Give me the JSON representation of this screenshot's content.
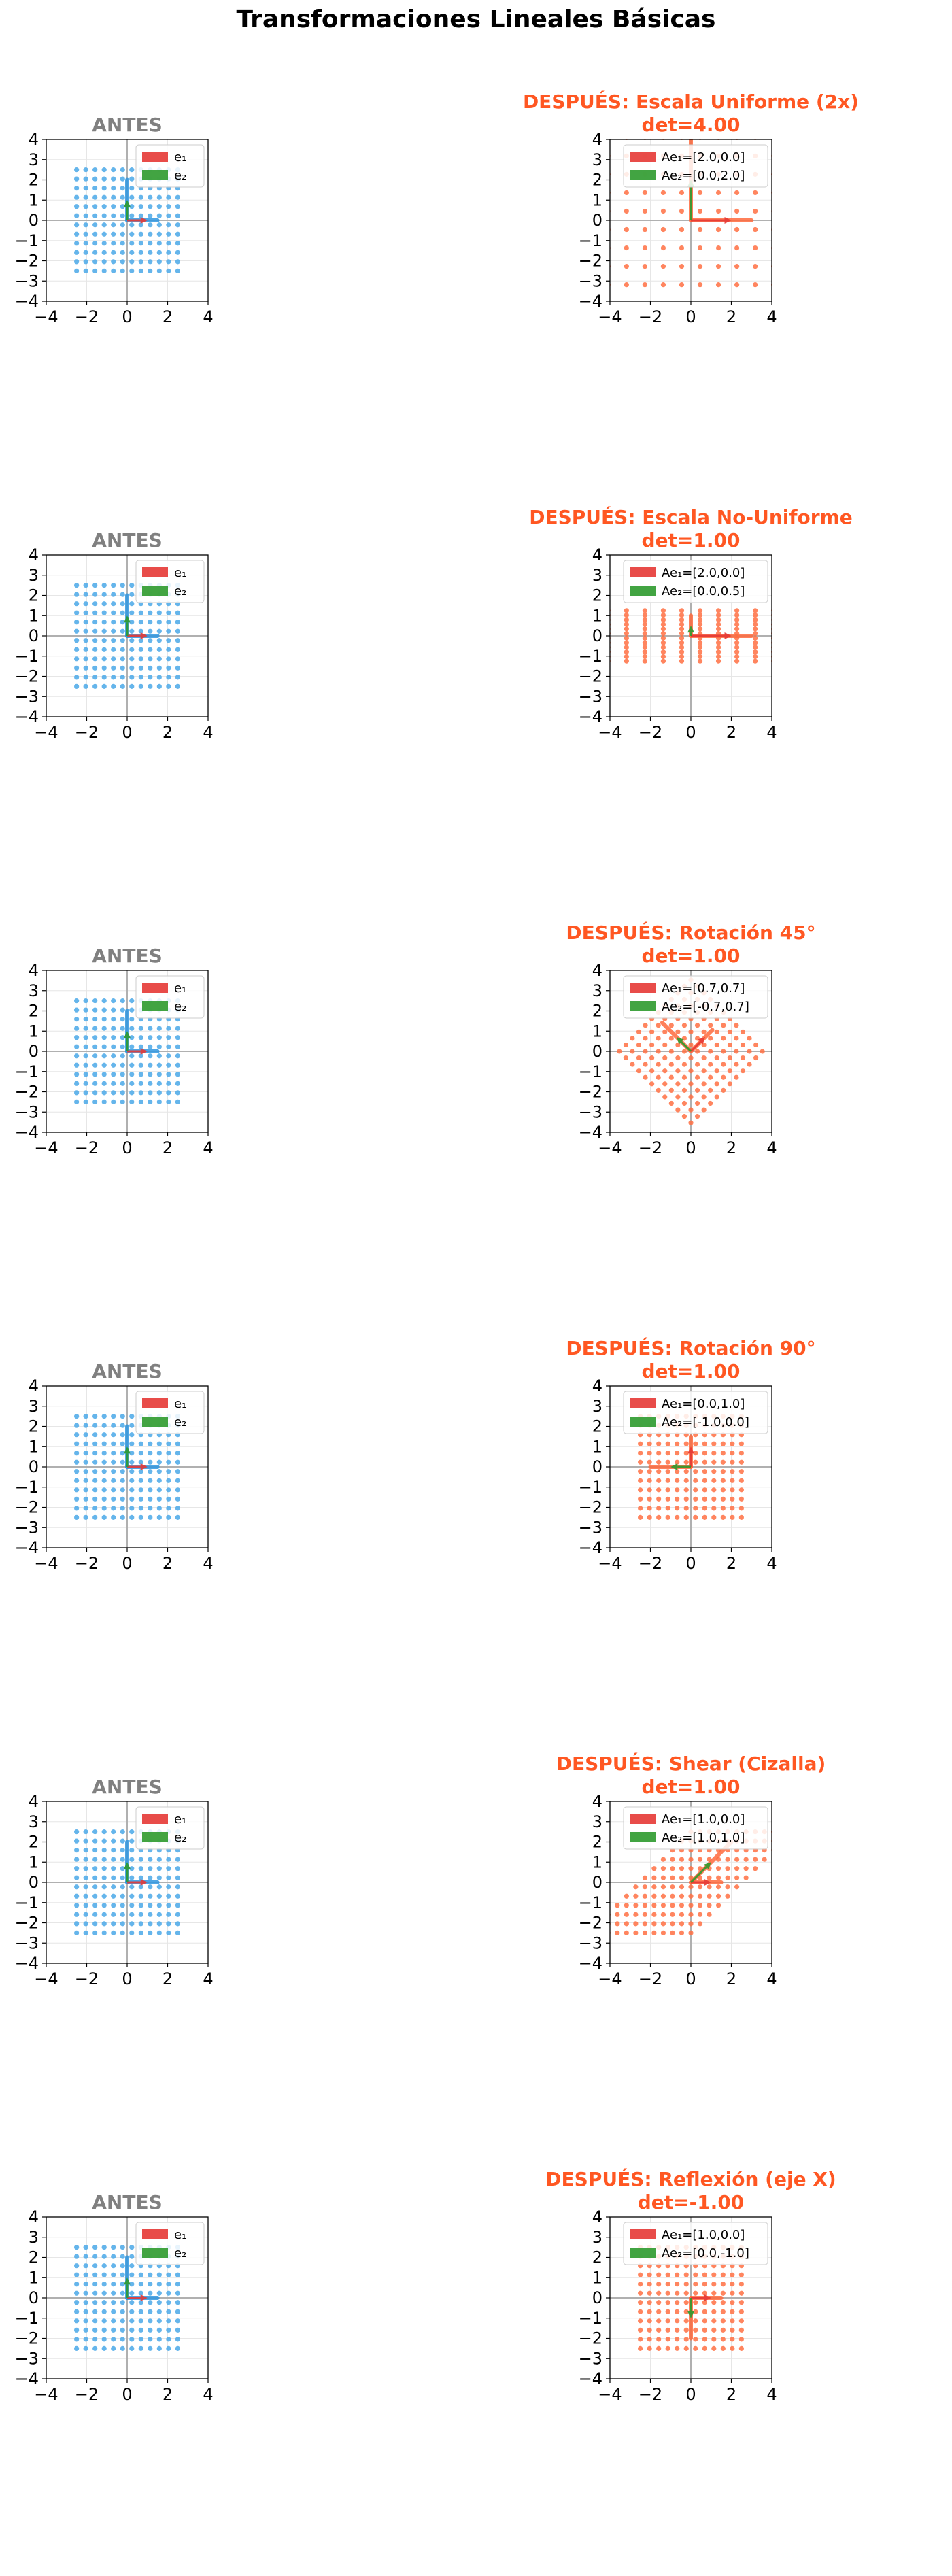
{
  "figure": {
    "suptitle": "Transformaciones Lineales Básicas"
  },
  "colors": {
    "before_points": "#4aa8e8",
    "after_points": "#ff7043",
    "before_title": "#808080",
    "after_title": "#ff5722",
    "e1": "#e53935",
    "e2": "#2e9a2e",
    "grid": "#e6e6e6",
    "axis": "#b0b0b0"
  },
  "chart_data": [
    {
      "type": "scatter",
      "title": "ANTES",
      "xlim": [
        -4,
        4
      ],
      "ylim": [
        -4,
        4
      ],
      "xticks": [
        -4,
        -2,
        0,
        2,
        4
      ],
      "yticks": [
        -4,
        -3,
        -2,
        -1,
        0,
        1,
        2,
        3,
        4
      ],
      "xtick_labels": [
        "−4",
        "−2",
        "0",
        "2",
        "4"
      ],
      "ytick_labels": [
        "−4",
        "−3",
        "−2",
        "−1",
        "0",
        "1",
        "2",
        "3",
        "4"
      ],
      "grid": true,
      "matrix": [
        [
          1,
          0
        ],
        [
          0,
          1
        ]
      ],
      "grid_points": {
        "x_min": -2.5,
        "x_max": 2.5,
        "y_min": -2.5,
        "y_max": 2.5,
        "n": 12
      },
      "legend": [
        "e₁",
        "e₂"
      ],
      "legend_loc": "upper right"
    },
    {
      "type": "scatter",
      "title": "DESPUÉS: Escala Uniforme (2x)",
      "subtitle": "det=4.00",
      "xlim": [
        -4,
        4
      ],
      "ylim": [
        -4,
        4
      ],
      "xticks": [
        -4,
        -2,
        0,
        2,
        4
      ],
      "yticks": [
        -4,
        -3,
        -2,
        -1,
        0,
        1,
        2,
        3,
        4
      ],
      "xtick_labels": [
        "−4",
        "−2",
        "0",
        "2",
        "4"
      ],
      "ytick_labels": [
        "−4",
        "−3",
        "−2",
        "−1",
        "0",
        "1",
        "2",
        "3",
        "4"
      ],
      "grid": true,
      "matrix": [
        [
          2,
          0
        ],
        [
          0,
          2
        ]
      ],
      "grid_points": {
        "x_min": -2.5,
        "x_max": 2.5,
        "y_min": -2.5,
        "y_max": 2.5,
        "n": 12
      },
      "legend": [
        "Ae₁=[2.0,0.0]",
        "Ae₂=[0.0,2.0]"
      ],
      "legend_loc": "upper right"
    },
    {
      "type": "scatter",
      "title": "ANTES",
      "xlim": [
        -4,
        4
      ],
      "ylim": [
        -4,
        4
      ],
      "xticks": [
        -4,
        -2,
        0,
        2,
        4
      ],
      "yticks": [
        -4,
        -3,
        -2,
        -1,
        0,
        1,
        2,
        3,
        4
      ],
      "xtick_labels": [
        "−4",
        "−2",
        "0",
        "2",
        "4"
      ],
      "ytick_labels": [
        "−4",
        "−3",
        "−2",
        "−1",
        "0",
        "1",
        "2",
        "3",
        "4"
      ],
      "grid": true,
      "matrix": [
        [
          1,
          0
        ],
        [
          0,
          1
        ]
      ],
      "grid_points": {
        "x_min": -2.5,
        "x_max": 2.5,
        "y_min": -2.5,
        "y_max": 2.5,
        "n": 12
      },
      "legend": [
        "e₁",
        "e₂"
      ],
      "legend_loc": "upper right"
    },
    {
      "type": "scatter",
      "title": "DESPUÉS: Escala No-Uniforme",
      "subtitle": "det=1.00",
      "xlim": [
        -4,
        4
      ],
      "ylim": [
        -4,
        4
      ],
      "xticks": [
        -4,
        -2,
        0,
        2,
        4
      ],
      "yticks": [
        -4,
        -3,
        -2,
        -1,
        0,
        1,
        2,
        3,
        4
      ],
      "xtick_labels": [
        "−4",
        "−2",
        "0",
        "2",
        "4"
      ],
      "ytick_labels": [
        "−4",
        "−3",
        "−2",
        "−1",
        "0",
        "1",
        "2",
        "3",
        "4"
      ],
      "grid": true,
      "matrix": [
        [
          2,
          0
        ],
        [
          0,
          0.5
        ]
      ],
      "grid_points": {
        "x_min": -2.5,
        "x_max": 2.5,
        "y_min": -2.5,
        "y_max": 2.5,
        "n": 12
      },
      "legend": [
        "Ae₁=[2.0,0.0]",
        "Ae₂=[0.0,0.5]"
      ],
      "legend_loc": "upper right"
    },
    {
      "type": "scatter",
      "title": "ANTES",
      "xlim": [
        -4,
        4
      ],
      "ylim": [
        -4,
        4
      ],
      "xticks": [
        -4,
        -2,
        0,
        2,
        4
      ],
      "yticks": [
        -4,
        -3,
        -2,
        -1,
        0,
        1,
        2,
        3,
        4
      ],
      "xtick_labels": [
        "−4",
        "−2",
        "0",
        "2",
        "4"
      ],
      "ytick_labels": [
        "−4",
        "−3",
        "−2",
        "−1",
        "0",
        "1",
        "2",
        "3",
        "4"
      ],
      "grid": true,
      "matrix": [
        [
          1,
          0
        ],
        [
          0,
          1
        ]
      ],
      "grid_points": {
        "x_min": -2.5,
        "x_max": 2.5,
        "y_min": -2.5,
        "y_max": 2.5,
        "n": 12
      },
      "legend": [
        "e₁",
        "e₂"
      ],
      "legend_loc": "upper right"
    },
    {
      "type": "scatter",
      "title": "DESPUÉS: Rotación 45°",
      "subtitle": "det=1.00",
      "xlim": [
        -4,
        4
      ],
      "ylim": [
        -4,
        4
      ],
      "xticks": [
        -4,
        -2,
        0,
        2,
        4
      ],
      "yticks": [
        -4,
        -3,
        -2,
        -1,
        0,
        1,
        2,
        3,
        4
      ],
      "xtick_labels": [
        "−4",
        "−2",
        "0",
        "2",
        "4"
      ],
      "ytick_labels": [
        "−4",
        "−3",
        "−2",
        "−1",
        "0",
        "1",
        "2",
        "3",
        "4"
      ],
      "grid": true,
      "matrix": [
        [
          0.7071,
          -0.7071
        ],
        [
          0.7071,
          0.7071
        ]
      ],
      "grid_points": {
        "x_min": -2.5,
        "x_max": 2.5,
        "y_min": -2.5,
        "y_max": 2.5,
        "n": 12
      },
      "legend": [
        "Ae₁=[0.7,0.7]",
        "Ae₂=[-0.7,0.7]"
      ],
      "legend_loc": "upper right"
    },
    {
      "type": "scatter",
      "title": "ANTES",
      "xlim": [
        -4,
        4
      ],
      "ylim": [
        -4,
        4
      ],
      "xticks": [
        -4,
        -2,
        0,
        2,
        4
      ],
      "yticks": [
        -4,
        -3,
        -2,
        -1,
        0,
        1,
        2,
        3,
        4
      ],
      "xtick_labels": [
        "−4",
        "−2",
        "0",
        "2",
        "4"
      ],
      "ytick_labels": [
        "−4",
        "−3",
        "−2",
        "−1",
        "0",
        "1",
        "2",
        "3",
        "4"
      ],
      "grid": true,
      "matrix": [
        [
          1,
          0
        ],
        [
          0,
          1
        ]
      ],
      "grid_points": {
        "x_min": -2.5,
        "x_max": 2.5,
        "y_min": -2.5,
        "y_max": 2.5,
        "n": 12
      },
      "legend": [
        "e₁",
        "e₂"
      ],
      "legend_loc": "upper right"
    },
    {
      "type": "scatter",
      "title": "DESPUÉS: Rotación 90°",
      "subtitle": "det=1.00",
      "xlim": [
        -4,
        4
      ],
      "ylim": [
        -4,
        4
      ],
      "xticks": [
        -4,
        -2,
        0,
        2,
        4
      ],
      "yticks": [
        -4,
        -3,
        -2,
        -1,
        0,
        1,
        2,
        3,
        4
      ],
      "xtick_labels": [
        "−4",
        "−2",
        "0",
        "2",
        "4"
      ],
      "ytick_labels": [
        "−4",
        "−3",
        "−2",
        "−1",
        "0",
        "1",
        "2",
        "3",
        "4"
      ],
      "grid": true,
      "matrix": [
        [
          0,
          -1
        ],
        [
          1,
          0
        ]
      ],
      "grid_points": {
        "x_min": -2.5,
        "x_max": 2.5,
        "y_min": -2.5,
        "y_max": 2.5,
        "n": 12
      },
      "legend": [
        "Ae₁=[0.0,1.0]",
        "Ae₂=[-1.0,0.0]"
      ],
      "legend_loc": "upper right"
    },
    {
      "type": "scatter",
      "title": "ANTES",
      "xlim": [
        -4,
        4
      ],
      "ylim": [
        -4,
        4
      ],
      "xticks": [
        -4,
        -2,
        0,
        2,
        4
      ],
      "yticks": [
        -4,
        -3,
        -2,
        -1,
        0,
        1,
        2,
        3,
        4
      ],
      "xtick_labels": [
        "−4",
        "−2",
        "0",
        "2",
        "4"
      ],
      "ytick_labels": [
        "−4",
        "−3",
        "−2",
        "−1",
        "0",
        "1",
        "2",
        "3",
        "4"
      ],
      "grid": true,
      "matrix": [
        [
          1,
          0
        ],
        [
          0,
          1
        ]
      ],
      "grid_points": {
        "x_min": -2.5,
        "x_max": 2.5,
        "y_min": -2.5,
        "y_max": 2.5,
        "n": 12
      },
      "legend": [
        "e₁",
        "e₂"
      ],
      "legend_loc": "upper right"
    },
    {
      "type": "scatter",
      "title": "DESPUÉS: Shear (Cizalla)",
      "subtitle": "det=1.00",
      "xlim": [
        -4,
        4
      ],
      "ylim": [
        -4,
        4
      ],
      "xticks": [
        -4,
        -2,
        0,
        2,
        4
      ],
      "yticks": [
        -4,
        -3,
        -2,
        -1,
        0,
        1,
        2,
        3,
        4
      ],
      "xtick_labels": [
        "−4",
        "−2",
        "0",
        "2",
        "4"
      ],
      "ytick_labels": [
        "−4",
        "−3",
        "−2",
        "−1",
        "0",
        "1",
        "2",
        "3",
        "4"
      ],
      "grid": true,
      "matrix": [
        [
          1,
          1
        ],
        [
          0,
          1
        ]
      ],
      "grid_points": {
        "x_min": -2.5,
        "x_max": 2.5,
        "y_min": -2.5,
        "y_max": 2.5,
        "n": 12
      },
      "legend": [
        "Ae₁=[1.0,0.0]",
        "Ae₂=[1.0,1.0]"
      ],
      "legend_loc": "upper right"
    },
    {
      "type": "scatter",
      "title": "ANTES",
      "xlim": [
        -4,
        4
      ],
      "ylim": [
        -4,
        4
      ],
      "xticks": [
        -4,
        -2,
        0,
        2,
        4
      ],
      "yticks": [
        -4,
        -3,
        -2,
        -1,
        0,
        1,
        2,
        3,
        4
      ],
      "xtick_labels": [
        "−4",
        "−2",
        "0",
        "2",
        "4"
      ],
      "ytick_labels": [
        "−4",
        "−3",
        "−2",
        "−1",
        "0",
        "1",
        "2",
        "3",
        "4"
      ],
      "grid": true,
      "matrix": [
        [
          1,
          0
        ],
        [
          0,
          1
        ]
      ],
      "grid_points": {
        "x_min": -2.5,
        "x_max": 2.5,
        "y_min": -2.5,
        "y_max": 2.5,
        "n": 12
      },
      "legend": [
        "e₁",
        "e₂"
      ],
      "legend_loc": "upper right"
    },
    {
      "type": "scatter",
      "title": "DESPUÉS: Reflexión (eje X)",
      "subtitle": "det=-1.00",
      "xlim": [
        -4,
        4
      ],
      "ylim": [
        -4,
        4
      ],
      "xticks": [
        -4,
        -2,
        0,
        2,
        4
      ],
      "yticks": [
        -4,
        -3,
        -2,
        -1,
        0,
        1,
        2,
        3,
        4
      ],
      "xtick_labels": [
        "−4",
        "−2",
        "0",
        "2",
        "4"
      ],
      "ytick_labels": [
        "−4",
        "−3",
        "−2",
        "−1",
        "0",
        "1",
        "2",
        "3",
        "4"
      ],
      "grid": true,
      "matrix": [
        [
          1,
          0
        ],
        [
          0,
          -1
        ]
      ],
      "grid_points": {
        "x_min": -2.5,
        "x_max": 2.5,
        "y_min": -2.5,
        "y_max": 2.5,
        "n": 12
      },
      "legend": [
        "Ae₁=[1.0,0.0]",
        "Ae₂=[0.0,-1.0]"
      ],
      "legend_loc": "upper right"
    }
  ]
}
